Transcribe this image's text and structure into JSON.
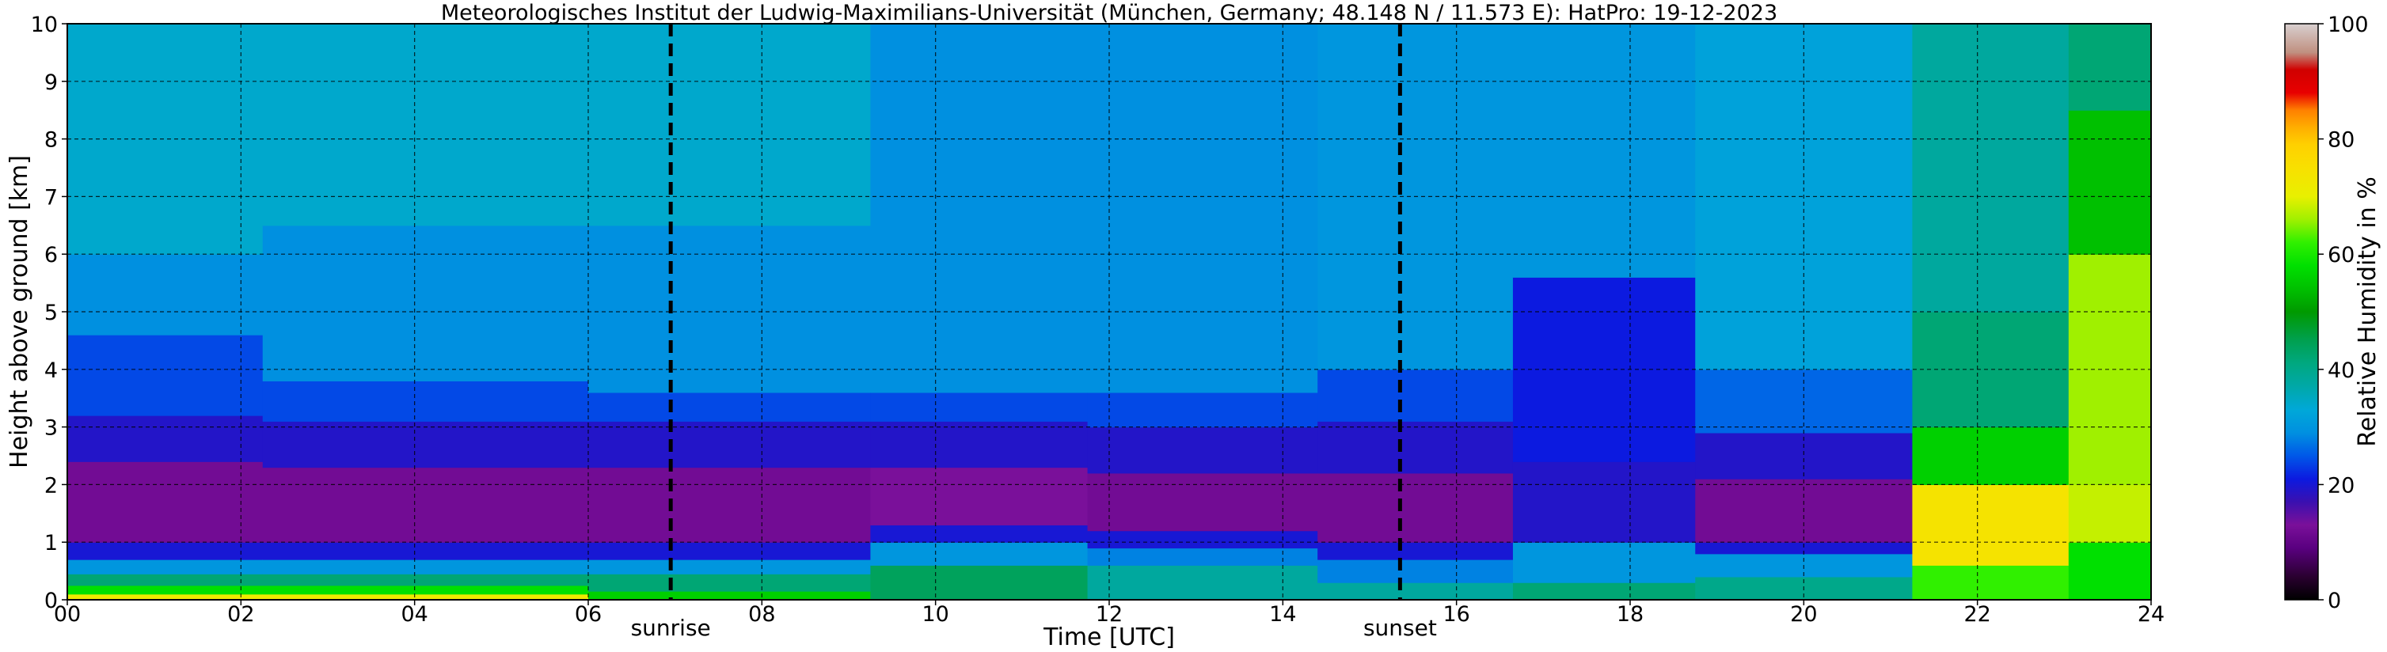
{
  "chart_data": {
    "type": "heatmap",
    "title": "Meteorologisches Institut der Ludwig-Maximilians-Universität (München, Germany; 48.148 N / 11.573 E):    HatPro: 19-12-2023",
    "xlabel": "Time [UTC]",
    "ylabel": "Height above ground [km]",
    "xlim": [
      0,
      24
    ],
    "ylim": [
      0,
      10
    ],
    "x_ticks": [
      {
        "value": 0,
        "label": "00"
      },
      {
        "value": 2,
        "label": "02"
      },
      {
        "value": 4,
        "label": "04"
      },
      {
        "value": 6,
        "label": "06"
      },
      {
        "value": 8,
        "label": "08"
      },
      {
        "value": 10,
        "label": "10"
      },
      {
        "value": 12,
        "label": "12"
      },
      {
        "value": 14,
        "label": "14"
      },
      {
        "value": 16,
        "label": "16"
      },
      {
        "value": 18,
        "label": "18"
      },
      {
        "value": 20,
        "label": "20"
      },
      {
        "value": 22,
        "label": "22"
      },
      {
        "value": 24,
        "label": "24"
      }
    ],
    "y_ticks": [
      {
        "value": 0,
        "label": "0"
      },
      {
        "value": 1,
        "label": "1"
      },
      {
        "value": 2,
        "label": "2"
      },
      {
        "value": 3,
        "label": "3"
      },
      {
        "value": 4,
        "label": "4"
      },
      {
        "value": 5,
        "label": "5"
      },
      {
        "value": 6,
        "label": "6"
      },
      {
        "value": 7,
        "label": "7"
      },
      {
        "value": 8,
        "label": "8"
      },
      {
        "value": 9,
        "label": "9"
      },
      {
        "value": 10,
        "label": "10"
      }
    ],
    "grid": true,
    "events": [
      {
        "name": "sunrise",
        "label": "sunrise",
        "time": 6.95
      },
      {
        "name": "sunset",
        "label": "sunset",
        "time": 15.35
      }
    ],
    "colorbar": {
      "label": "Relative Humidity in %",
      "range": [
        0,
        100
      ],
      "ticks": [
        {
          "value": 0,
          "label": "0"
        },
        {
          "value": 20,
          "label": "20"
        },
        {
          "value": 40,
          "label": "40"
        },
        {
          "value": 60,
          "label": "60"
        },
        {
          "value": 80,
          "label": "80"
        },
        {
          "value": 100,
          "label": "100"
        }
      ],
      "stops": [
        {
          "value": 0,
          "color": "#000000"
        },
        {
          "value": 4,
          "color": "#2a0030"
        },
        {
          "value": 9,
          "color": "#5a0080"
        },
        {
          "value": 13,
          "color": "#7a109a"
        },
        {
          "value": 17,
          "color": "#3a10b0"
        },
        {
          "value": 21,
          "color": "#0c1ae0"
        },
        {
          "value": 25,
          "color": "#0058e8"
        },
        {
          "value": 29,
          "color": "#0090e0"
        },
        {
          "value": 33,
          "color": "#00a8d8"
        },
        {
          "value": 37,
          "color": "#00a8a8"
        },
        {
          "value": 41,
          "color": "#00a880"
        },
        {
          "value": 45,
          "color": "#00a050"
        },
        {
          "value": 50,
          "color": "#009a00"
        },
        {
          "value": 54,
          "color": "#00c000"
        },
        {
          "value": 58,
          "color": "#00e000"
        },
        {
          "value": 62,
          "color": "#30f000"
        },
        {
          "value": 66,
          "color": "#a0f000"
        },
        {
          "value": 70,
          "color": "#e8f000"
        },
        {
          "value": 75,
          "color": "#f8e000"
        },
        {
          "value": 79,
          "color": "#ffd000"
        },
        {
          "value": 82,
          "color": "#ffae00"
        },
        {
          "value": 85,
          "color": "#ff8000"
        },
        {
          "value": 88,
          "color": "#e80000"
        },
        {
          "value": 92,
          "color": "#d00000"
        },
        {
          "value": 95,
          "color": "#c09080"
        },
        {
          "value": 100,
          "color": "#d8d0d0"
        }
      ]
    },
    "series": [
      {
        "time": 0.5,
        "bands": [
          {
            "from": 0,
            "to": 0.1,
            "rh": 72
          },
          {
            "from": 0.1,
            "to": 0.25,
            "rh": 58
          },
          {
            "from": 0.25,
            "to": 0.45,
            "rh": 42
          },
          {
            "from": 0.45,
            "to": 0.7,
            "rh": 30
          },
          {
            "from": 0.7,
            "to": 1.0,
            "rh": 20
          },
          {
            "from": 1.0,
            "to": 2.4,
            "rh": 12
          },
          {
            "from": 2.4,
            "to": 3.2,
            "rh": 19
          },
          {
            "from": 3.2,
            "to": 4.6,
            "rh": 24
          },
          {
            "from": 4.6,
            "to": 6.0,
            "rh": 29
          },
          {
            "from": 6.0,
            "to": 10,
            "rh": 34
          }
        ]
      },
      {
        "time": 4.0,
        "bands": [
          {
            "from": 0,
            "to": 0.1,
            "rh": 72
          },
          {
            "from": 0.1,
            "to": 0.25,
            "rh": 58
          },
          {
            "from": 0.25,
            "to": 0.45,
            "rh": 42
          },
          {
            "from": 0.45,
            "to": 0.7,
            "rh": 30
          },
          {
            "from": 0.7,
            "to": 1.0,
            "rh": 20
          },
          {
            "from": 1.0,
            "to": 2.3,
            "rh": 12
          },
          {
            "from": 2.3,
            "to": 3.1,
            "rh": 19
          },
          {
            "from": 3.1,
            "to": 3.8,
            "rh": 24
          },
          {
            "from": 3.8,
            "to": 6.5,
            "rh": 29
          },
          {
            "from": 6.5,
            "to": 10,
            "rh": 34
          }
        ]
      },
      {
        "time": 8.0,
        "bands": [
          {
            "from": 0,
            "to": 0.15,
            "rh": 56
          },
          {
            "from": 0.15,
            "to": 0.45,
            "rh": 42
          },
          {
            "from": 0.45,
            "to": 0.7,
            "rh": 30
          },
          {
            "from": 0.7,
            "to": 1.0,
            "rh": 20
          },
          {
            "from": 1.0,
            "to": 2.3,
            "rh": 12
          },
          {
            "from": 2.3,
            "to": 3.1,
            "rh": 19
          },
          {
            "from": 3.1,
            "to": 3.6,
            "rh": 24
          },
          {
            "from": 3.6,
            "to": 6.5,
            "rh": 29
          },
          {
            "from": 6.5,
            "to": 10,
            "rh": 34
          }
        ]
      },
      {
        "time": 10.5,
        "bands": [
          {
            "from": 0,
            "to": 0.6,
            "rh": 44
          },
          {
            "from": 0.6,
            "to": 1.0,
            "rh": 30
          },
          {
            "from": 1.0,
            "to": 1.3,
            "rh": 20
          },
          {
            "from": 1.3,
            "to": 2.3,
            "rh": 13
          },
          {
            "from": 2.3,
            "to": 3.1,
            "rh": 19
          },
          {
            "from": 3.1,
            "to": 3.6,
            "rh": 24
          },
          {
            "from": 3.6,
            "to": 10,
            "rh": 29
          }
        ]
      },
      {
        "time": 13.0,
        "bands": [
          {
            "from": 0,
            "to": 0.6,
            "rh": 38
          },
          {
            "from": 0.6,
            "to": 0.9,
            "rh": 28
          },
          {
            "from": 0.9,
            "to": 1.2,
            "rh": 20
          },
          {
            "from": 1.2,
            "to": 2.2,
            "rh": 12
          },
          {
            "from": 2.2,
            "to": 3.0,
            "rh": 19
          },
          {
            "from": 3.0,
            "to": 3.6,
            "rh": 24
          },
          {
            "from": 3.6,
            "to": 10,
            "rh": 29
          }
        ]
      },
      {
        "time": 15.8,
        "bands": [
          {
            "from": 0,
            "to": 0.3,
            "rh": 38
          },
          {
            "from": 0.3,
            "to": 0.7,
            "rh": 28
          },
          {
            "from": 0.7,
            "to": 1.0,
            "rh": 20
          },
          {
            "from": 1.0,
            "to": 2.2,
            "rh": 12
          },
          {
            "from": 2.2,
            "to": 3.1,
            "rh": 19
          },
          {
            "from": 3.1,
            "to": 4.0,
            "rh": 24
          },
          {
            "from": 4.0,
            "to": 10,
            "rh": 30
          }
        ]
      },
      {
        "time": 17.5,
        "bands": [
          {
            "from": 0,
            "to": 0.3,
            "rh": 42
          },
          {
            "from": 0.3,
            "to": 1.0,
            "rh": 30
          },
          {
            "from": 1.0,
            "to": 2.4,
            "rh": 19
          },
          {
            "from": 2.4,
            "to": 5.6,
            "rh": 21
          },
          {
            "from": 5.6,
            "to": 10,
            "rh": 30
          }
        ]
      },
      {
        "time": 20.0,
        "bands": [
          {
            "from": 0,
            "to": 0.4,
            "rh": 40
          },
          {
            "from": 0.4,
            "to": 0.8,
            "rh": 30
          },
          {
            "from": 0.8,
            "to": 1.0,
            "rh": 20
          },
          {
            "from": 1.0,
            "to": 2.1,
            "rh": 12
          },
          {
            "from": 2.1,
            "to": 2.9,
            "rh": 19
          },
          {
            "from": 2.9,
            "to": 4.0,
            "rh": 26
          },
          {
            "from": 4.0,
            "to": 10,
            "rh": 32
          }
        ]
      },
      {
        "time": 22.5,
        "bands": [
          {
            "from": 0,
            "to": 0.6,
            "rh": 62
          },
          {
            "from": 0.6,
            "to": 2.0,
            "rh": 74
          },
          {
            "from": 2.0,
            "to": 3.0,
            "rh": 56
          },
          {
            "from": 3.0,
            "to": 5.0,
            "rh": 42
          },
          {
            "from": 5.0,
            "to": 10,
            "rh": 38
          }
        ]
      },
      {
        "time": 23.6,
        "bands": [
          {
            "from": 0,
            "to": 1.0,
            "rh": 58
          },
          {
            "from": 1.0,
            "to": 2.0,
            "rh": 68
          },
          {
            "from": 2.0,
            "to": 6.0,
            "rh": 66
          },
          {
            "from": 6.0,
            "to": 8.5,
            "rh": 54
          },
          {
            "from": 8.5,
            "to": 10,
            "rh": 42
          }
        ]
      }
    ]
  }
}
